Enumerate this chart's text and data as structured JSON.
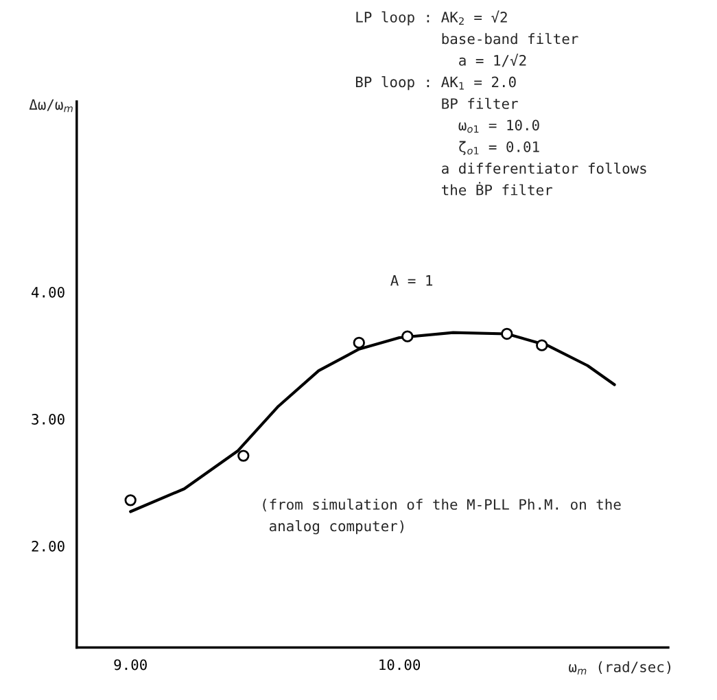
{
  "chart_data": {
    "type": "scatter",
    "ylabel": "Δω/ω$_{m}$",
    "xlabel": "ω$_{m}$ (rad/sec)",
    "annotations": [
      "LP loop : AK$_{2}$ = √2\n          base-band filter\n            a = 1/√2\nBP loop : AK$_{1}$ = 2.0\n          BP filter\n            ω$_{o1}$ = 10.0\n            ζ$_{o1}$ = 0.01\n          a differentiator follows\n          the ḂP filter",
      "A = 1",
      "(from simulation of the M-PLL Ph.M. on the\n analog computer)"
    ],
    "series": [
      {
        "color": "#000000",
        "marker": "circle",
        "x": [
          9.0,
          9.42,
          9.85,
          10.03,
          10.4,
          10.53
        ],
        "values": [
          2.36,
          2.71,
          3.6,
          3.65,
          3.67,
          3.58
        ]
      },
      {
        "type": "line",
        "color": "#000000",
        "marker": "none",
        "line_style": "solid",
        "x": [
          9.0,
          9.2,
          9.4,
          9.55,
          9.7,
          9.85,
          10.0,
          10.2,
          10.4,
          10.55,
          10.7,
          10.8
        ],
        "values": [
          2.27,
          2.45,
          2.75,
          3.1,
          3.38,
          3.55,
          3.64,
          3.68,
          3.67,
          3.58,
          3.42,
          3.27
        ]
      }
    ],
    "xlim": [
      8.8,
      11.0
    ],
    "ylim": [
      1.2,
      5.5
    ],
    "xticks": [
      {
        "value": 9,
        "label": "9.00"
      },
      {
        "value": 10,
        "label": "10.00"
      }
    ],
    "yticks": [
      {
        "value": 2,
        "label": "2.00"
      },
      {
        "value": 3,
        "label": "3.00"
      },
      {
        "value": 4,
        "label": "4.00"
      }
    ],
    "grid": false,
    "legend": false
  }
}
